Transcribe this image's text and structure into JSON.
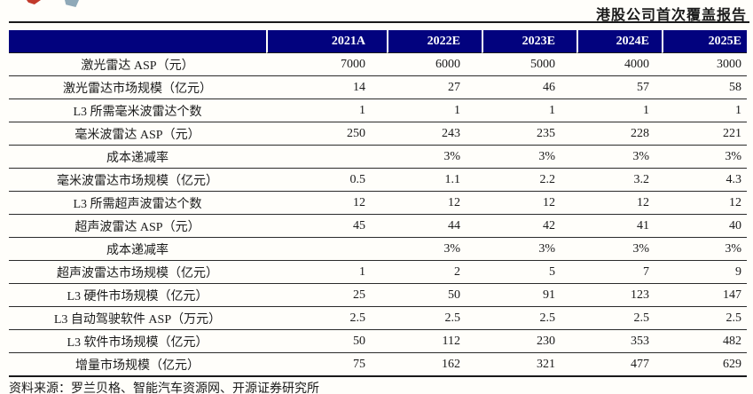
{
  "header": {
    "report_type": "港股公司首次覆盖报告"
  },
  "table": {
    "year_columns": [
      "2021A",
      "2022E",
      "2023E",
      "2024E",
      "2025E"
    ],
    "rows": [
      {
        "label": "激光雷达 ASP（元）",
        "values": [
          "7000",
          "6000",
          "5000",
          "4000",
          "3000"
        ]
      },
      {
        "label": "激光雷达市场规模（亿元）",
        "values": [
          "14",
          "27",
          "46",
          "57",
          "58"
        ]
      },
      {
        "label": "L3 所需毫米波雷达个数",
        "values": [
          "1",
          "1",
          "1",
          "1",
          "1"
        ]
      },
      {
        "label": "毫米波雷达 ASP（元）",
        "values": [
          "250",
          "243",
          "235",
          "228",
          "221"
        ]
      },
      {
        "label": "成本递减率",
        "values": [
          "",
          "3%",
          "3%",
          "3%",
          "3%"
        ]
      },
      {
        "label": "毫米波雷达市场规模（亿元）",
        "values": [
          "0.5",
          "1.1",
          "2.2",
          "3.2",
          "4.3"
        ]
      },
      {
        "label": "L3 所需超声波雷达个数",
        "values": [
          "12",
          "12",
          "12",
          "12",
          "12"
        ]
      },
      {
        "label": "超声波雷达 ASP（元）",
        "values": [
          "45",
          "44",
          "42",
          "41",
          "40"
        ]
      },
      {
        "label": "成本递减率",
        "values": [
          "",
          "3%",
          "3%",
          "3%",
          "3%"
        ]
      },
      {
        "label": "超声波雷达市场规模（亿元）",
        "values": [
          "1",
          "2",
          "5",
          "7",
          "9"
        ]
      },
      {
        "label": "L3 硬件市场规模（亿元）",
        "values": [
          "25",
          "50",
          "91",
          "123",
          "147"
        ]
      },
      {
        "label": "L3 自动驾驶软件 ASP（万元）",
        "values": [
          "2.5",
          "2.5",
          "2.5",
          "2.5",
          "2.5"
        ]
      },
      {
        "label": "L3 软件市场规模（亿元）",
        "values": [
          "50",
          "112",
          "230",
          "353",
          "482"
        ]
      },
      {
        "label": "增量市场规模（亿元）",
        "values": [
          "75",
          "162",
          "321",
          "477",
          "629"
        ]
      }
    ]
  },
  "footer": {
    "source": "资料来源：罗兰贝格、智能汽车资源网、开源证券研究所"
  },
  "colors": {
    "header_bg": "#02027E",
    "header_text": "#FFFFFF",
    "rule": "#1A1A1A",
    "logo_red": "#C23A2B",
    "logo_blue": "#8FA9B8"
  }
}
